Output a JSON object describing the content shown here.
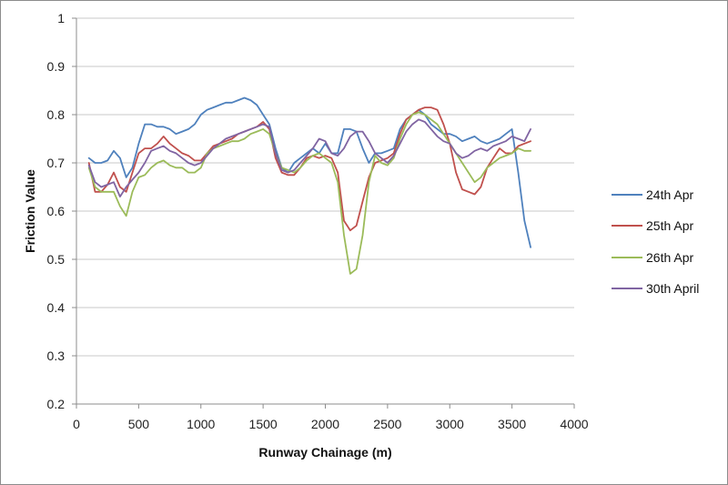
{
  "chart_data": {
    "type": "line",
    "title": "",
    "xlabel": "Runway Chainage  (m)",
    "ylabel": "Friction Value",
    "xlim": [
      0,
      4000
    ],
    "ylim": [
      0.2,
      1
    ],
    "xticks": [
      "0",
      "500",
      "1000",
      "1500",
      "2000",
      "2500",
      "3000",
      "3500",
      "4000"
    ],
    "yticks": [
      "0.2",
      "0.3",
      "0.4",
      "0.5",
      "0.6",
      "0.7",
      "0.8",
      "0.9",
      "1"
    ],
    "grid": "horizontal",
    "legend_position": "right",
    "series": [
      {
        "name": "24th Apr",
        "color": "#4F81BD",
        "x": [
          100,
          150,
          200,
          250,
          300,
          350,
          400,
          450,
          500,
          550,
          600,
          650,
          700,
          750,
          800,
          850,
          900,
          950,
          1000,
          1050,
          1100,
          1150,
          1200,
          1250,
          1300,
          1350,
          1400,
          1450,
          1500,
          1550,
          1600,
          1650,
          1700,
          1750,
          1800,
          1850,
          1900,
          1950,
          2000,
          2050,
          2100,
          2150,
          2200,
          2250,
          2300,
          2350,
          2400,
          2450,
          2500,
          2550,
          2600,
          2650,
          2700,
          2750,
          2800,
          2850,
          2900,
          2950,
          3000,
          3050,
          3100,
          3150,
          3200,
          3250,
          3300,
          3350,
          3400,
          3450,
          3500,
          3550,
          3600,
          3650
        ],
        "values": [
          0.71,
          0.7,
          0.7,
          0.705,
          0.725,
          0.71,
          0.67,
          0.69,
          0.74,
          0.78,
          0.78,
          0.775,
          0.775,
          0.77,
          0.76,
          0.765,
          0.77,
          0.78,
          0.8,
          0.81,
          0.815,
          0.82,
          0.825,
          0.825,
          0.83,
          0.835,
          0.83,
          0.82,
          0.8,
          0.78,
          0.73,
          0.69,
          0.68,
          0.7,
          0.71,
          0.72,
          0.73,
          0.72,
          0.74,
          0.72,
          0.72,
          0.77,
          0.77,
          0.765,
          0.73,
          0.7,
          0.72,
          0.72,
          0.725,
          0.73,
          0.77,
          0.79,
          0.8,
          0.81,
          0.8,
          0.78,
          0.77,
          0.76,
          0.76,
          0.755,
          0.745,
          0.75,
          0.755,
          0.745,
          0.74,
          0.745,
          0.75,
          0.76,
          0.77,
          0.68,
          0.58,
          0.525
        ]
      },
      {
        "name": "25th Apr",
        "color": "#C0504D",
        "x": [
          100,
          150,
          200,
          250,
          300,
          350,
          400,
          450,
          500,
          550,
          600,
          650,
          700,
          750,
          800,
          850,
          900,
          950,
          1000,
          1050,
          1100,
          1150,
          1200,
          1250,
          1300,
          1350,
          1400,
          1450,
          1500,
          1550,
          1600,
          1650,
          1700,
          1750,
          1800,
          1850,
          1900,
          1950,
          2000,
          2050,
          2100,
          2150,
          2200,
          2250,
          2300,
          2350,
          2400,
          2450,
          2500,
          2550,
          2600,
          2650,
          2700,
          2750,
          2800,
          2850,
          2900,
          2950,
          3000,
          3050,
          3100,
          3150,
          3200,
          3250,
          3300,
          3350,
          3400,
          3450,
          3500,
          3550,
          3600,
          3650
        ],
        "values": [
          0.7,
          0.64,
          0.64,
          0.655,
          0.68,
          0.65,
          0.64,
          0.68,
          0.72,
          0.73,
          0.73,
          0.74,
          0.755,
          0.74,
          0.73,
          0.72,
          0.715,
          0.705,
          0.705,
          0.72,
          0.735,
          0.74,
          0.745,
          0.75,
          0.76,
          0.765,
          0.77,
          0.775,
          0.785,
          0.77,
          0.71,
          0.68,
          0.675,
          0.675,
          0.69,
          0.71,
          0.715,
          0.71,
          0.715,
          0.71,
          0.68,
          0.58,
          0.56,
          0.57,
          0.62,
          0.67,
          0.7,
          0.705,
          0.71,
          0.72,
          0.76,
          0.79,
          0.8,
          0.81,
          0.815,
          0.815,
          0.81,
          0.78,
          0.74,
          0.68,
          0.645,
          0.64,
          0.635,
          0.65,
          0.69,
          0.71,
          0.73,
          0.72,
          0.72,
          0.735,
          0.74,
          0.745
        ]
      },
      {
        "name": "26th Apr",
        "color": "#9BBB59",
        "x": [
          100,
          150,
          200,
          250,
          300,
          350,
          400,
          450,
          500,
          550,
          600,
          650,
          700,
          750,
          800,
          850,
          900,
          950,
          1000,
          1050,
          1100,
          1150,
          1200,
          1250,
          1300,
          1350,
          1400,
          1450,
          1500,
          1550,
          1600,
          1650,
          1700,
          1750,
          1800,
          1850,
          1900,
          1950,
          2000,
          2050,
          2100,
          2150,
          2200,
          2250,
          2300,
          2350,
          2400,
          2450,
          2500,
          2550,
          2600,
          2650,
          2700,
          2750,
          2800,
          2850,
          2900,
          2950,
          3000,
          3050,
          3100,
          3150,
          3200,
          3250,
          3300,
          3350,
          3400,
          3450,
          3500,
          3550,
          3600,
          3650
        ],
        "values": [
          0.69,
          0.65,
          0.64,
          0.64,
          0.64,
          0.61,
          0.59,
          0.64,
          0.67,
          0.675,
          0.69,
          0.7,
          0.705,
          0.695,
          0.69,
          0.69,
          0.68,
          0.68,
          0.69,
          0.72,
          0.73,
          0.735,
          0.74,
          0.745,
          0.745,
          0.75,
          0.76,
          0.765,
          0.77,
          0.76,
          0.72,
          0.69,
          0.685,
          0.68,
          0.69,
          0.705,
          0.715,
          0.72,
          0.71,
          0.7,
          0.66,
          0.55,
          0.47,
          0.48,
          0.55,
          0.66,
          0.715,
          0.7,
          0.695,
          0.71,
          0.75,
          0.78,
          0.8,
          0.805,
          0.8,
          0.79,
          0.78,
          0.76,
          0.74,
          0.72,
          0.7,
          0.68,
          0.66,
          0.67,
          0.69,
          0.7,
          0.71,
          0.715,
          0.72,
          0.73,
          0.725,
          0.725
        ]
      },
      {
        "name": "30th April",
        "color": "#8064A2",
        "x": [
          100,
          150,
          200,
          250,
          300,
          350,
          400,
          450,
          500,
          550,
          600,
          650,
          700,
          750,
          800,
          850,
          900,
          950,
          1000,
          1050,
          1100,
          1150,
          1200,
          1250,
          1300,
          1350,
          1400,
          1450,
          1500,
          1550,
          1600,
          1650,
          1700,
          1750,
          1800,
          1850,
          1900,
          1950,
          2000,
          2050,
          2100,
          2150,
          2200,
          2250,
          2300,
          2350,
          2400,
          2450,
          2500,
          2550,
          2600,
          2650,
          2700,
          2750,
          2800,
          2850,
          2900,
          2950,
          3000,
          3050,
          3100,
          3150,
          3200,
          3250,
          3300,
          3350,
          3400,
          3450,
          3500,
          3550,
          3600,
          3650
        ],
        "values": [
          0.695,
          0.66,
          0.65,
          0.655,
          0.66,
          0.63,
          0.65,
          0.665,
          0.68,
          0.7,
          0.725,
          0.73,
          0.735,
          0.725,
          0.72,
          0.71,
          0.7,
          0.695,
          0.7,
          0.715,
          0.73,
          0.74,
          0.75,
          0.755,
          0.76,
          0.765,
          0.77,
          0.775,
          0.78,
          0.775,
          0.72,
          0.685,
          0.68,
          0.685,
          0.7,
          0.715,
          0.73,
          0.75,
          0.745,
          0.72,
          0.715,
          0.73,
          0.755,
          0.765,
          0.765,
          0.745,
          0.72,
          0.71,
          0.7,
          0.715,
          0.74,
          0.765,
          0.78,
          0.79,
          0.785,
          0.77,
          0.755,
          0.745,
          0.74,
          0.72,
          0.71,
          0.715,
          0.725,
          0.73,
          0.725,
          0.735,
          0.74,
          0.745,
          0.755,
          0.75,
          0.745,
          0.77
        ]
      }
    ]
  }
}
